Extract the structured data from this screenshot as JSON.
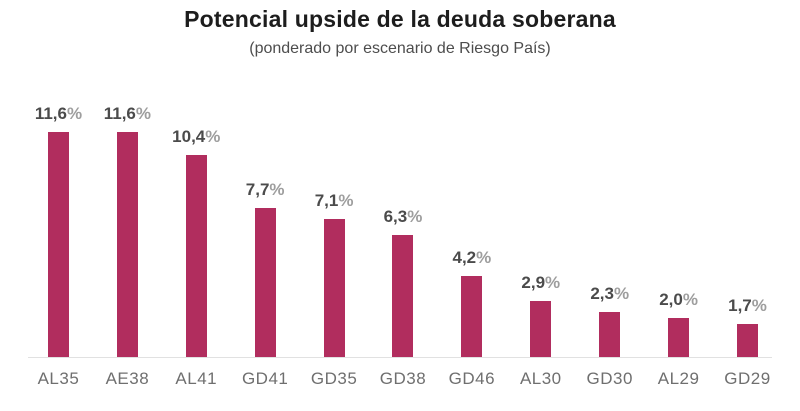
{
  "chart_data": {
    "type": "bar",
    "title": "Potencial upside de la deuda soberana",
    "subtitle": "(ponderado por escenario de Riesgo País)",
    "categories": [
      "AL35",
      "AE38",
      "AL41",
      "GD41",
      "GD35",
      "GD38",
      "GD46",
      "AL30",
      "GD30",
      "AL29",
      "GD29"
    ],
    "values": [
      11.6,
      11.6,
      10.4,
      7.7,
      7.1,
      6.3,
      4.2,
      2.9,
      2.3,
      2.0,
      1.7
    ],
    "value_labels": [
      "11,6%",
      "11,6%",
      "10,4%",
      "7,7%",
      "7,1%",
      "6,3%",
      "4,2%",
      "2,9%",
      "2,3%",
      "2,0%",
      "1,7%"
    ],
    "xlabel": "",
    "ylabel": "",
    "ylim": [
      0,
      12.5
    ],
    "grid": false,
    "legend": "none",
    "bar_color": "#b12d5e",
    "title_color": "#1d1d1d",
    "subtitle_color": "#4d4d4d",
    "value_label_color": "#4b4b4b",
    "percent_sign_color": "#9e9e9e",
    "category_label_color": "#6f6f6f",
    "baseline_color": "#e1e1e1"
  }
}
